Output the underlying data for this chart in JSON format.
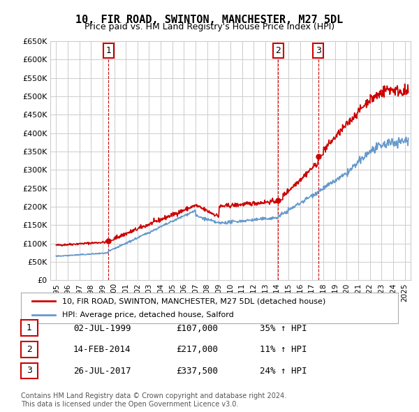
{
  "title": "10, FIR ROAD, SWINTON, MANCHESTER, M27 5DL",
  "subtitle": "Price paid vs. HM Land Registry's House Price Index (HPI)",
  "ylabel_ticks": [
    "£0",
    "£50K",
    "£100K",
    "£150K",
    "£200K",
    "£250K",
    "£300K",
    "£350K",
    "£400K",
    "£450K",
    "£500K",
    "£550K",
    "£600K",
    "£650K"
  ],
  "ytick_values": [
    0,
    50000,
    100000,
    150000,
    200000,
    250000,
    300000,
    350000,
    400000,
    450000,
    500000,
    550000,
    600000,
    650000
  ],
  "red_line_color": "#cc0000",
  "blue_line_color": "#6699cc",
  "vline_color": "#cc0000",
  "grid_color": "#cccccc",
  "background_color": "#ffffff",
  "sale_points": [
    {
      "date_num": 1999.5,
      "price": 107000,
      "label": "1"
    },
    {
      "date_num": 2014.1,
      "price": 217000,
      "label": "2"
    },
    {
      "date_num": 2017.55,
      "price": 337500,
      "label": "3"
    }
  ],
  "legend_entries": [
    "10, FIR ROAD, SWINTON, MANCHESTER, M27 5DL (detached house)",
    "HPI: Average price, detached house, Salford"
  ],
  "table_rows": [
    {
      "num": "1",
      "date": "02-JUL-1999",
      "price": "£107,000",
      "change": "35% ↑ HPI"
    },
    {
      "num": "2",
      "date": "14-FEB-2014",
      "price": "£217,000",
      "change": "11% ↑ HPI"
    },
    {
      "num": "3",
      "date": "26-JUL-2017",
      "price": "£337,500",
      "change": "24% ↑ HPI"
    }
  ],
  "footer": "Contains HM Land Registry data © Crown copyright and database right 2024.\nThis data is licensed under the Open Government Licence v3.0.",
  "xmin": 1994.5,
  "xmax": 2025.5,
  "ymin": 0,
  "ymax": 650000
}
